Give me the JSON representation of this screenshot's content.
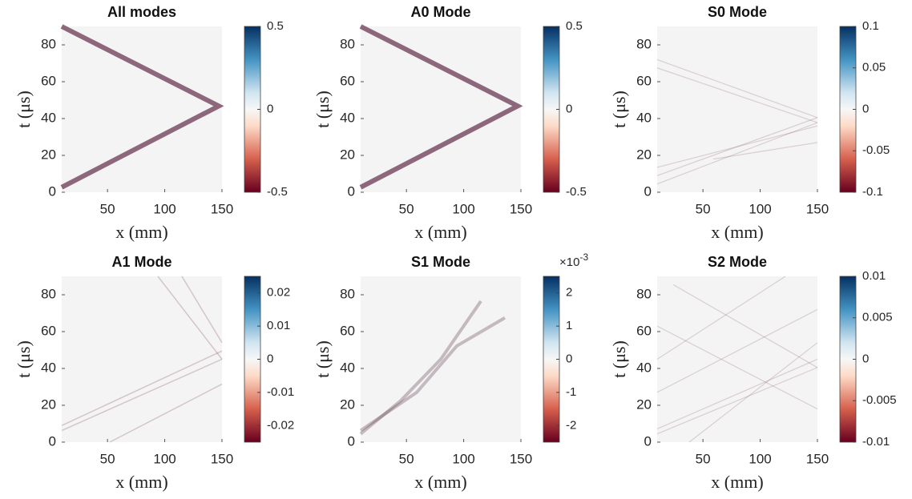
{
  "chart_data": [
    {
      "type": "heatmap",
      "title": "All modes",
      "xlabel": "x (mm)",
      "ylabel": "t (μs)",
      "xlim": [
        10,
        150
      ],
      "xticks": [
        50,
        100,
        150
      ],
      "ylim": [
        0,
        90
      ],
      "yticks": [
        0,
        20,
        40,
        60,
        80
      ],
      "clim": [
        -0.5,
        0.5
      ],
      "cticks": [
        -0.5,
        0,
        0.5
      ]
    },
    {
      "type": "heatmap",
      "title": "A0 Mode",
      "xlabel": "x (mm)",
      "ylabel": "t (μs)",
      "xlim": [
        10,
        150
      ],
      "xticks": [
        50,
        100,
        150
      ],
      "ylim": [
        0,
        90
      ],
      "yticks": [
        0,
        20,
        40,
        60,
        80
      ],
      "clim": [
        -0.5,
        0.5
      ],
      "cticks": [
        -0.5,
        0,
        0.5
      ]
    },
    {
      "type": "heatmap",
      "title": "S0 Mode",
      "xlabel": "x (mm)",
      "ylabel": "t (μs)",
      "xlim": [
        10,
        150
      ],
      "xticks": [
        50,
        100,
        150
      ],
      "ylim": [
        0,
        90
      ],
      "yticks": [
        0,
        20,
        40,
        60,
        80
      ],
      "clim": [
        -0.1,
        0.1
      ],
      "cticks": [
        -0.1,
        -0.05,
        0,
        0.05,
        0.1
      ]
    },
    {
      "type": "heatmap",
      "title": "A1 Mode",
      "xlabel": "x (mm)",
      "ylabel": "t (μs)",
      "xlim": [
        10,
        150
      ],
      "xticks": [
        50,
        100,
        150
      ],
      "ylim": [
        0,
        90
      ],
      "yticks": [
        0,
        20,
        40,
        60,
        80
      ],
      "clim": [
        -0.025,
        0.025
      ],
      "cticks": [
        -0.02,
        -0.01,
        0,
        0.01,
        0.02
      ]
    },
    {
      "type": "heatmap",
      "title": "S1 Mode",
      "xlabel": "x (mm)",
      "ylabel": "t (μs)",
      "xlim": [
        10,
        150
      ],
      "xticks": [
        50,
        100,
        150
      ],
      "ylim": [
        0,
        90
      ],
      "yticks": [
        0,
        20,
        40,
        60,
        80
      ],
      "clim": [
        -2.5,
        2.5
      ],
      "cticks": [
        -2,
        -1,
        0,
        1,
        2
      ],
      "colorbar_exponent": {
        "base": "×10",
        "power": "-3"
      }
    },
    {
      "type": "heatmap",
      "title": "S2 Mode",
      "xlabel": "x (mm)",
      "ylabel": "t (μs)",
      "xlim": [
        10,
        150
      ],
      "xticks": [
        50,
        100,
        150
      ],
      "ylim": [
        0,
        90
      ],
      "yticks": [
        0,
        20,
        40,
        60,
        80
      ],
      "clim": [
        -0.01,
        0.01
      ],
      "cticks": [
        -0.01,
        -0.005,
        0,
        0.005,
        0.01
      ]
    }
  ]
}
